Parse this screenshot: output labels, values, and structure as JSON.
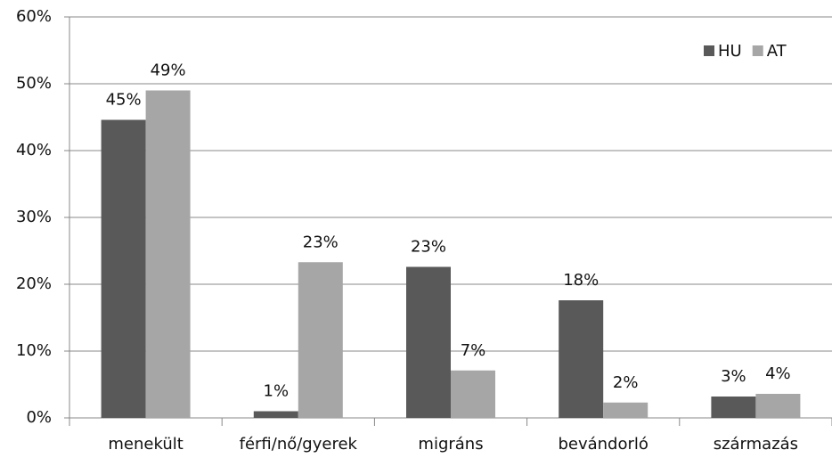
{
  "chart_data": {
    "type": "bar",
    "categories": [
      "menekült",
      "férfi/nő/gyerek",
      "migráns",
      "bevándorló",
      "származás"
    ],
    "series": [
      {
        "name": "HU",
        "color": "#595959",
        "values": [
          44.6,
          1.0,
          22.6,
          17.6,
          3.2
        ],
        "value_labels": [
          "45%",
          "1%",
          "23%",
          "18%",
          "3%"
        ]
      },
      {
        "name": "AT",
        "color": "#a6a6a6",
        "values": [
          49.0,
          23.3,
          7.1,
          2.3,
          3.6
        ],
        "value_labels": [
          "49%",
          "23%",
          "7%",
          "2%",
          "4%"
        ]
      }
    ],
    "ylim": [
      0,
      60
    ],
    "yticks": [
      {
        "value": 0,
        "label": "0%"
      },
      {
        "value": 10,
        "label": "10%"
      },
      {
        "value": 20,
        "label": "20%"
      },
      {
        "value": 30,
        "label": "30%"
      },
      {
        "value": 40,
        "label": "40%"
      },
      {
        "value": 50,
        "label": "50%"
      },
      {
        "value": 60,
        "label": "60%"
      }
    ],
    "grid": true,
    "legend": "top-right"
  }
}
